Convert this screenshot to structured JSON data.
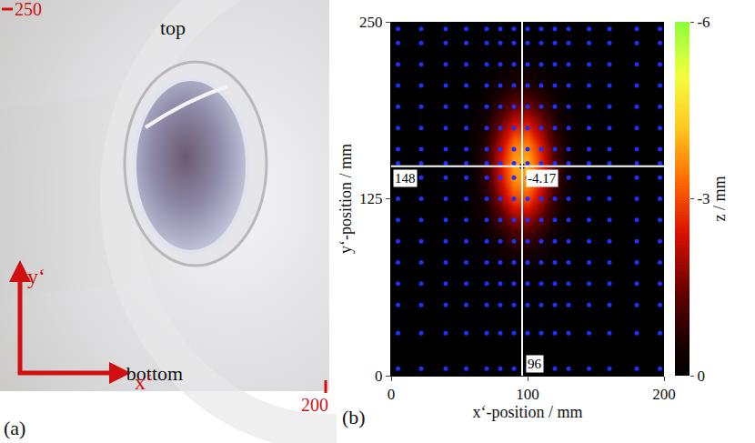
{
  "photo": {
    "label": "(a)",
    "top": "top",
    "bottom": "bottom",
    "x_axis": "x‘",
    "y_axis": "y‘",
    "x_end": 200,
    "y_end": 250
  },
  "chart_data": {
    "type": "heatmap",
    "label": "(b)",
    "x_label": "x‘-position / mm",
    "y_label": "y‘-position / mm",
    "xlim": [
      0,
      200
    ],
    "xticks": [
      0,
      100,
      200
    ],
    "ylim": [
      0,
      250
    ],
    "yticks": [
      0,
      125,
      250
    ],
    "heatmap": {
      "x": [
        0,
        10,
        20,
        30,
        40,
        50,
        60,
        70,
        80,
        90,
        100,
        110,
        120,
        130,
        140,
        150,
        160,
        170,
        180,
        190,
        200
      ],
      "y": [
        0,
        12.5,
        25,
        37.5,
        50,
        62.5,
        75,
        87.5,
        100,
        112.5,
        125,
        137.5,
        150,
        162.5,
        175,
        187.5,
        200,
        212.5,
        225,
        237.5,
        250
      ],
      "z": [
        [
          0,
          0,
          0,
          0,
          0,
          0,
          0,
          0,
          0,
          0,
          0,
          0,
          0,
          0,
          0,
          0,
          0,
          0,
          0,
          0,
          0
        ],
        [
          0,
          0,
          0,
          0,
          0,
          0,
          0,
          0,
          0,
          0,
          0,
          0,
          0,
          0,
          0,
          0,
          0,
          0,
          0,
          0,
          0
        ],
        [
          0,
          0,
          0,
          0,
          0,
          0,
          0,
          0,
          0,
          0,
          0,
          0,
          0,
          0,
          0,
          0,
          0,
          0,
          0,
          0,
          0
        ],
        [
          0,
          0,
          0,
          0,
          0,
          0,
          0,
          0,
          0,
          0,
          0,
          0,
          0,
          0,
          0,
          0,
          0,
          0,
          0,
          0,
          0
        ],
        [
          0,
          0,
          0,
          0,
          0,
          0,
          0,
          0,
          -0.01,
          -0.02,
          -0.02,
          -0.01,
          -0.01,
          0,
          0,
          0,
          0,
          0,
          0,
          0,
          0
        ],
        [
          0,
          0,
          0,
          0,
          0,
          0,
          0,
          -0.02,
          -0.04,
          -0.07,
          -0.07,
          -0.05,
          -0.02,
          -0.01,
          0,
          0,
          0,
          0,
          0,
          0,
          0
        ],
        [
          0,
          0,
          0,
          0,
          0,
          0,
          -0.01,
          -0.05,
          -0.12,
          -0.2,
          -0.21,
          -0.14,
          -0.06,
          -0.02,
          0,
          0,
          0,
          0,
          0,
          0,
          0
        ],
        [
          0,
          0,
          0,
          0,
          0,
          0,
          -0.03,
          -0.12,
          -0.31,
          -0.5,
          -0.53,
          -0.35,
          -0.15,
          -0.04,
          -0.01,
          0,
          0,
          0,
          0,
          0,
          0
        ],
        [
          0,
          0,
          0,
          0,
          0,
          -0.01,
          -0.07,
          -0.26,
          -0.66,
          -1.07,
          -1.12,
          -0.75,
          -0.32,
          -0.09,
          -0.02,
          0,
          0,
          0,
          0,
          0,
          0
        ],
        [
          0,
          0,
          0,
          0,
          0,
          -0.02,
          -0.12,
          -0.46,
          -1.17,
          -1.91,
          -2,
          -1.34,
          -0.58,
          -0.16,
          -0.03,
          0,
          0,
          0,
          0,
          0,
          0
        ],
        [
          0,
          0,
          0,
          0,
          0,
          -0.03,
          -0.17,
          -0.69,
          -1.76,
          -2.87,
          -2.99,
          -2.01,
          -0.86,
          -0.24,
          -0.04,
          0,
          0,
          0,
          0,
          0,
          0
        ],
        [
          0,
          0,
          0,
          0,
          0,
          -0.04,
          -0.22,
          -0.87,
          -2.22,
          -3.62,
          -3.78,
          -2.54,
          -1.09,
          -0.3,
          -0.05,
          -0.01,
          0,
          0,
          0,
          0,
          0
        ],
        [
          0,
          0,
          0,
          0,
          0,
          -0.04,
          -0.23,
          -0.93,
          -2.36,
          -3.84,
          -4.01,
          -2.69,
          -1.16,
          -0.32,
          -0.06,
          -0.01,
          0,
          0,
          0,
          0,
          0
        ],
        [
          0,
          0,
          0,
          0,
          0,
          -0.03,
          -0.21,
          -0.83,
          -2.1,
          -3.43,
          -3.58,
          -2.4,
          -1.03,
          -0.29,
          -0.05,
          -0.01,
          0,
          0,
          0,
          0,
          0
        ],
        [
          0,
          0,
          0,
          0,
          0,
          -0.03,
          -0.16,
          -0.62,
          -1.57,
          -2.57,
          -2.68,
          -1.8,
          -0.77,
          -0.21,
          -0.04,
          0,
          0,
          0,
          0,
          0,
          0
        ],
        [
          0,
          0,
          0,
          0,
          0,
          -0.02,
          -0.1,
          -0.39,
          -0.99,
          -1.62,
          -1.69,
          -1.13,
          -0.49,
          -0.13,
          -0.02,
          0,
          0,
          0,
          0,
          0,
          0
        ],
        [
          0,
          0,
          0,
          0,
          0,
          -0.01,
          -0.05,
          -0.21,
          -0.53,
          -0.86,
          -0.9,
          -0.6,
          -0.26,
          -0.07,
          -0.01,
          0,
          0,
          0,
          0,
          0,
          0
        ],
        [
          0,
          0,
          0,
          0,
          0,
          0,
          -0.02,
          -0.09,
          -0.23,
          -0.38,
          -0.4,
          -0.27,
          -0.11,
          -0.03,
          -0.01,
          0,
          0,
          0,
          0,
          0,
          0
        ],
        [
          0,
          0,
          0,
          0,
          0,
          0,
          -0.01,
          -0.03,
          -0.09,
          -0.14,
          -0.15,
          -0.1,
          -0.04,
          -0.01,
          0,
          0,
          0,
          0,
          0,
          0,
          0
        ],
        [
          0,
          0,
          0,
          0,
          0,
          0,
          0,
          -0.01,
          -0.03,
          -0.05,
          -0.05,
          -0.03,
          -0.01,
          0,
          0,
          0,
          0,
          0,
          0,
          0,
          0
        ],
        [
          0,
          0,
          0,
          0,
          0,
          0,
          0,
          0,
          -0.01,
          -0.01,
          -0.01,
          -0.01,
          0,
          0,
          0,
          0,
          0,
          0,
          0,
          0,
          0
        ]
      ]
    },
    "colorbar": {
      "title": "z / mm",
      "range": [
        -6,
        0
      ],
      "ticks": [
        -6,
        -3,
        0
      ]
    },
    "measurement_points": {
      "x": [
        5,
        22,
        40,
        55,
        70,
        80,
        90,
        100,
        110,
        120,
        130,
        145,
        160,
        180,
        197
      ],
      "y": [
        5,
        30,
        50,
        65,
        80,
        95,
        110,
        125,
        140,
        150,
        160,
        175,
        190,
        205,
        220,
        235,
        245
      ],
      "color": "#1f2fff"
    },
    "marked_point": {
      "x": 96,
      "y": 148,
      "z": -4.17
    }
  }
}
